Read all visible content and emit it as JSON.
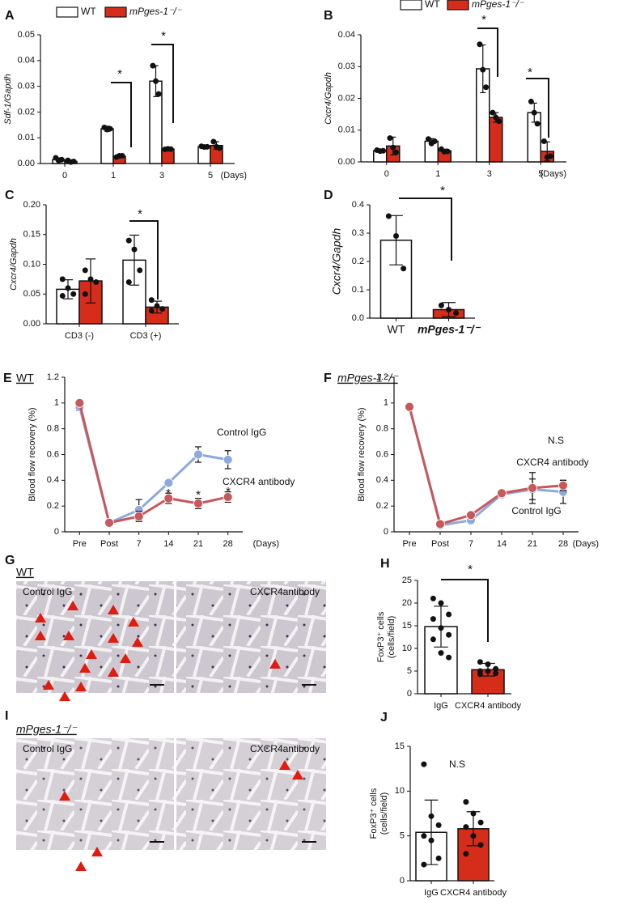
{
  "chart_data": [
    {
      "label": "A",
      "type": "bar",
      "ylabel": "Sdf-1/Gapdh",
      "xlabel": "(Days)",
      "categories": [
        "0",
        "1",
        "3",
        "5"
      ],
      "series": [
        {
          "name": "WT",
          "color": "#ffffff",
          "values": [
            0.0015,
            0.0135,
            0.032,
            0.0065
          ],
          "errors": [
            0.0007,
            0.001,
            0.006,
            0.0004
          ],
          "points": [
            [
              0.0022,
              0.0012,
              0.0015
            ],
            [
              0.014,
              0.0132,
              0.0135
            ],
            [
              0.038,
              0.032,
              0.027
            ],
            [
              0.0067,
              0.0064,
              0.0065
            ]
          ]
        },
        {
          "name": "mPges-1⁻/⁻",
          "color": "#d62d1a",
          "values": [
            0.0008,
            0.0028,
            0.0056,
            0.007
          ],
          "errors": [
            0.0004,
            0.0004,
            0.0004,
            0.0015
          ],
          "points": [
            [
              0.0012,
              0.0006,
              0.0008
            ],
            [
              0.0025,
              0.003,
              0.003
            ],
            [
              0.0055,
              0.0057,
              0.0056
            ],
            [
              0.0085,
              0.0065,
              0.006
            ]
          ]
        }
      ],
      "ylim": [
        0,
        0.05
      ],
      "yticks": [
        {
          "value": 0,
          "label": "0.00"
        },
        0.01,
        0.02,
        0.03,
        0.04,
        0.05
      ],
      "annotations": [
        "*",
        "*"
      ]
    },
    {
      "label": "B",
      "type": "bar",
      "ylabel": "Cxcr4/Gapdh",
      "xlabel": "(Days)",
      "categories": [
        "0",
        "1",
        "3",
        "5"
      ],
      "series": [
        {
          "name": "WT",
          "color": "#ffffff",
          "values": [
            0.0035,
            0.0065,
            0.0293,
            0.0155
          ],
          "errors": [
            0.0003,
            0.0008,
            0.0075,
            0.003
          ],
          "points": [
            [
              0.0037,
              0.0034,
              0.0035
            ],
            [
              0.0072,
              0.0058,
              0.0065
            ],
            [
              0.037,
              0.029,
              0.0235
            ],
            [
              0.019,
              0.0155,
              0.012
            ]
          ]
        },
        {
          "name": "mPges-1⁻/⁻",
          "color": "#d62d1a",
          "values": [
            0.005,
            0.0035,
            0.014,
            0.0033
          ],
          "errors": [
            0.0028,
            0.0005,
            0.0015,
            0.003
          ],
          "points": [
            [
              0.0075,
              0.0045,
              0.003
            ],
            [
              0.004,
              0.0032,
              0.0033
            ],
            [
              0.0155,
              0.014,
              0.0128
            ],
            [
              0.0065,
              0.0015,
              0.0018
            ]
          ]
        }
      ],
      "ylim": [
        0,
        0.04
      ],
      "yticks": [
        {
          "value": 0,
          "label": "0.00"
        },
        0.01,
        0.02,
        0.03,
        0.04
      ],
      "annotations": [
        "*",
        "*"
      ]
    },
    {
      "label": "C",
      "type": "bar",
      "ylabel": "Cxcr4/Gapdh",
      "categories": [
        "CD3 (-)",
        "CD3 (+)"
      ],
      "series": [
        {
          "name": "WT",
          "color": "#ffffff",
          "values": [
            0.058,
            0.107
          ],
          "errors": [
            0.016,
            0.042
          ],
          "points": [
            [
              0.075,
              0.06,
              0.05,
              0.047
            ],
            [
              0.14,
              0.125,
              0.09,
              0.07
            ]
          ]
        },
        {
          "name": "mPges-1⁻/⁻",
          "color": "#d62d1a",
          "values": [
            0.072,
            0.028
          ],
          "errors": [
            0.037,
            0.01
          ],
          "points": [
            [
              0.09,
              0.075,
              0.07,
              0.05
            ],
            [
              0.04,
              0.03,
              0.025,
              0.022
            ]
          ]
        }
      ],
      "ylim": [
        0,
        0.2
      ],
      "yticks": [
        {
          "value": 0,
          "label": "0.00"
        },
        0.05,
        {
          "value": 0.1,
          "label": "0.10"
        },
        0.15,
        {
          "value": 0.2,
          "label": "0.20"
        }
      ],
      "annotations": [
        "*"
      ]
    },
    {
      "label": "D",
      "type": "bar",
      "ylabel": "Cxcr4/Gapdh",
      "categories": [
        "WT",
        "mPges-1⁻/⁻"
      ],
      "values": [
        0.275,
        0.03
      ],
      "errors": [
        0.087,
        0.025
      ],
      "colors": [
        "#ffffff",
        "#d62d1a"
      ],
      "points": [
        [
          0.36,
          0.29,
          0.175
        ],
        [
          0.045,
          0.03,
          0.018
        ]
      ],
      "ylim": [
        0,
        0.4
      ],
      "yticks": [
        {
          "value": 0,
          "label": "0.0"
        },
        0.1,
        0.2,
        0.3,
        0.4
      ],
      "annotations": [
        "*"
      ]
    },
    {
      "label": "E",
      "type": "line",
      "subtitle": "WT",
      "ylabel": "Blood flow recovery (%)",
      "xlabel": "(Days)",
      "categories": [
        "Pre",
        "Post",
        "7",
        "14",
        "21",
        "28"
      ],
      "series": [
        {
          "name": "Control IgG",
          "color": "#8ea9db",
          "values": [
            0.97,
            0.07,
            0.17,
            0.38,
            0.6,
            0.56
          ],
          "errors": [
            0.03,
            0.02,
            0.08,
            0.02,
            0.06,
            0.07
          ]
        },
        {
          "name": "CXCR4 antibody",
          "color": "#c7585c",
          "values": [
            1.0,
            0.07,
            0.12,
            0.26,
            0.22,
            0.27
          ],
          "errors": [
            0.02,
            0.02,
            0.04,
            0.04,
            0.04,
            0.04
          ]
        }
      ],
      "ylim": [
        0,
        1.2
      ],
      "yticks": [
        0,
        0.2,
        0.4,
        0.6,
        0.8,
        1,
        1.2
      ],
      "annotations": [
        "*",
        "*",
        "*"
      ]
    },
    {
      "label": "F",
      "type": "line",
      "subtitle": "mPges-1⁻/⁻",
      "ylabel": "Blood flow recovery (%)",
      "xlabel": "(Days)",
      "categories": [
        "Pre",
        "Post",
        "7",
        "14",
        "21",
        "28"
      ],
      "series": [
        {
          "name": "Control IgG",
          "color": "#8ea9db",
          "values": [
            0.97,
            0.05,
            0.09,
            0.29,
            0.33,
            0.31
          ],
          "errors": [
            0.02,
            0.02,
            0.02,
            0.02,
            0.08,
            0.09
          ]
        },
        {
          "name": "CXCR4 antibody",
          "color": "#c7585c",
          "values": [
            0.97,
            0.06,
            0.13,
            0.3,
            0.34,
            0.36
          ],
          "errors": [
            0.02,
            0.02,
            0.02,
            0.02,
            0.12,
            0.04
          ]
        }
      ],
      "ylim": [
        0,
        1.2
      ],
      "yticks": [
        0,
        0.2,
        0.4,
        0.6,
        0.8,
        1,
        1.2
      ],
      "annotations": [
        "N.S"
      ]
    },
    {
      "label": "H",
      "type": "bar",
      "ylabel": [
        "FoxP3⁺ cells",
        "(cells/field)"
      ],
      "categories": [
        "IgG",
        "CXCR4 antibody"
      ],
      "values": [
        14.8,
        5.3
      ],
      "errors": [
        4.5,
        1.4
      ],
      "colors": [
        "#ffffff",
        "#d62d1a"
      ],
      "points": [
        [
          21,
          20,
          17.5,
          16.5,
          14.5,
          13,
          12,
          9,
          8
        ],
        [
          7,
          6.5,
          5.5,
          5,
          5,
          4.5,
          4.3
        ]
      ],
      "ylim": [
        0,
        25
      ],
      "yticks": [
        0,
        5,
        10,
        15,
        20,
        25
      ],
      "annotations": [
        "*"
      ]
    },
    {
      "label": "J",
      "type": "bar",
      "ylabel": [
        "FoxP3⁺ cells",
        "(cells/field)"
      ],
      "categories": [
        "IgG",
        "CXCR4 antibody"
      ],
      "values": [
        5.4,
        5.8
      ],
      "errors": [
        3.6,
        1.9
      ],
      "colors": [
        "#ffffff",
        "#d62d1a"
      ],
      "points": [
        [
          13,
          7.2,
          6.2,
          5,
          4.5,
          2.5,
          1.8
        ],
        [
          8.8,
          7.5,
          6.5,
          6,
          5,
          4,
          3
        ]
      ],
      "ylim": [
        0,
        15
      ],
      "yticks": [
        0,
        5,
        10,
        15
      ],
      "annotations": [
        "N.S"
      ]
    }
  ],
  "images": [
    {
      "label": "G",
      "genotype": "WT",
      "panels": [
        "Control IgG",
        "CXCR4antibody"
      ]
    },
    {
      "label": "I",
      "genotype": "mPges-1⁻/⁻",
      "panels": [
        "Control IgG",
        "CXCR4antibody"
      ]
    }
  ]
}
